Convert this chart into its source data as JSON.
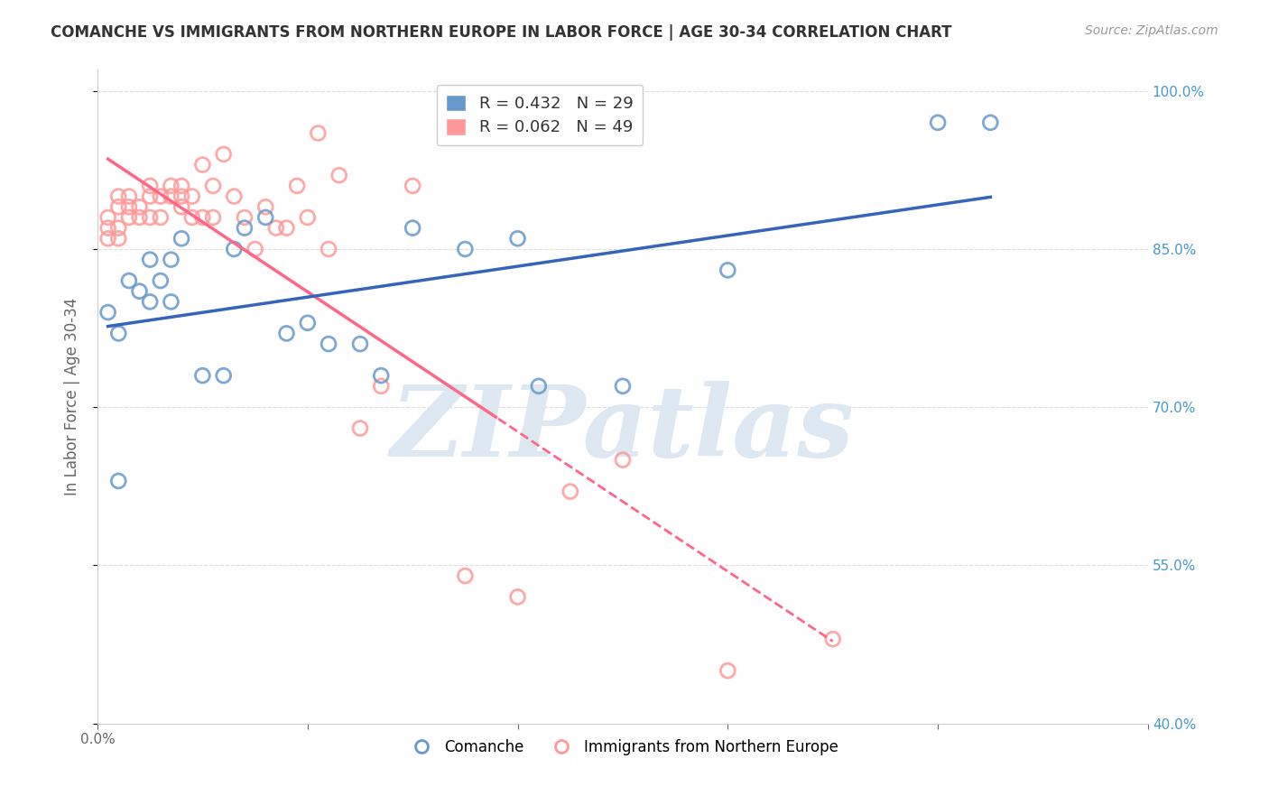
{
  "title": "COMANCHE VS IMMIGRANTS FROM NORTHERN EUROPE IN LABOR FORCE | AGE 30-34 CORRELATION CHART",
  "source": "Source: ZipAtlas.com",
  "ylabel": "In Labor Force | Age 30-34",
  "watermark": "ZIPatlas",
  "blue_R": 0.432,
  "blue_N": 29,
  "pink_R": 0.062,
  "pink_N": 49,
  "legend_blue": "Comanche",
  "legend_pink": "Immigrants from Northern Europe",
  "blue_color": "#6699CC",
  "pink_color": "#FF9999",
  "blue_line_color": "#3366BB",
  "pink_line_color": "#FF6688",
  "xlim": [
    0.0,
    1.0
  ],
  "ylim": [
    0.4,
    1.02
  ],
  "x_ticks": [
    0.0,
    0.2,
    0.4,
    0.6,
    0.8,
    1.0
  ],
  "y_ticks": [
    0.4,
    0.55,
    0.7,
    0.85,
    1.0
  ],
  "y_tick_labels": [
    "40.0%",
    "55.0%",
    "70.0%",
    "85.0%",
    "100.0%"
  ],
  "blue_x": [
    0.01,
    0.02,
    0.02,
    0.03,
    0.04,
    0.05,
    0.05,
    0.06,
    0.07,
    0.07,
    0.08,
    0.1,
    0.12,
    0.13,
    0.14,
    0.16,
    0.18,
    0.2,
    0.22,
    0.25,
    0.27,
    0.3,
    0.35,
    0.4,
    0.42,
    0.5,
    0.6,
    0.8,
    0.85
  ],
  "blue_y": [
    0.79,
    0.63,
    0.77,
    0.82,
    0.81,
    0.8,
    0.84,
    0.82,
    0.84,
    0.8,
    0.86,
    0.73,
    0.73,
    0.85,
    0.87,
    0.88,
    0.77,
    0.78,
    0.76,
    0.76,
    0.73,
    0.87,
    0.85,
    0.86,
    0.72,
    0.72,
    0.83,
    0.97,
    0.97
  ],
  "pink_x": [
    0.01,
    0.01,
    0.01,
    0.02,
    0.02,
    0.02,
    0.02,
    0.03,
    0.03,
    0.03,
    0.04,
    0.04,
    0.05,
    0.05,
    0.05,
    0.06,
    0.06,
    0.07,
    0.07,
    0.08,
    0.08,
    0.08,
    0.09,
    0.09,
    0.1,
    0.1,
    0.11,
    0.11,
    0.12,
    0.13,
    0.14,
    0.15,
    0.16,
    0.17,
    0.18,
    0.19,
    0.2,
    0.21,
    0.22,
    0.23,
    0.25,
    0.27,
    0.3,
    0.35,
    0.4,
    0.45,
    0.5,
    0.6,
    0.7
  ],
  "pink_y": [
    0.88,
    0.87,
    0.86,
    0.9,
    0.89,
    0.87,
    0.86,
    0.9,
    0.89,
    0.88,
    0.89,
    0.88,
    0.91,
    0.9,
    0.88,
    0.9,
    0.88,
    0.91,
    0.9,
    0.91,
    0.9,
    0.89,
    0.9,
    0.88,
    0.93,
    0.88,
    0.91,
    0.88,
    0.94,
    0.9,
    0.88,
    0.85,
    0.89,
    0.87,
    0.87,
    0.91,
    0.88,
    0.96,
    0.85,
    0.92,
    0.68,
    0.72,
    0.91,
    0.54,
    0.52,
    0.62,
    0.65,
    0.45,
    0.48
  ],
  "bg_color": "#FFFFFF",
  "grid_color": "#DDDDDD",
  "title_color": "#333333",
  "axis_color": "#666666",
  "watermark_color": "#DDE8F2",
  "legend_fontsize": 13,
  "title_fontsize": 12,
  "tick_fontsize": 11,
  "right_tick_color": "#4499CC"
}
